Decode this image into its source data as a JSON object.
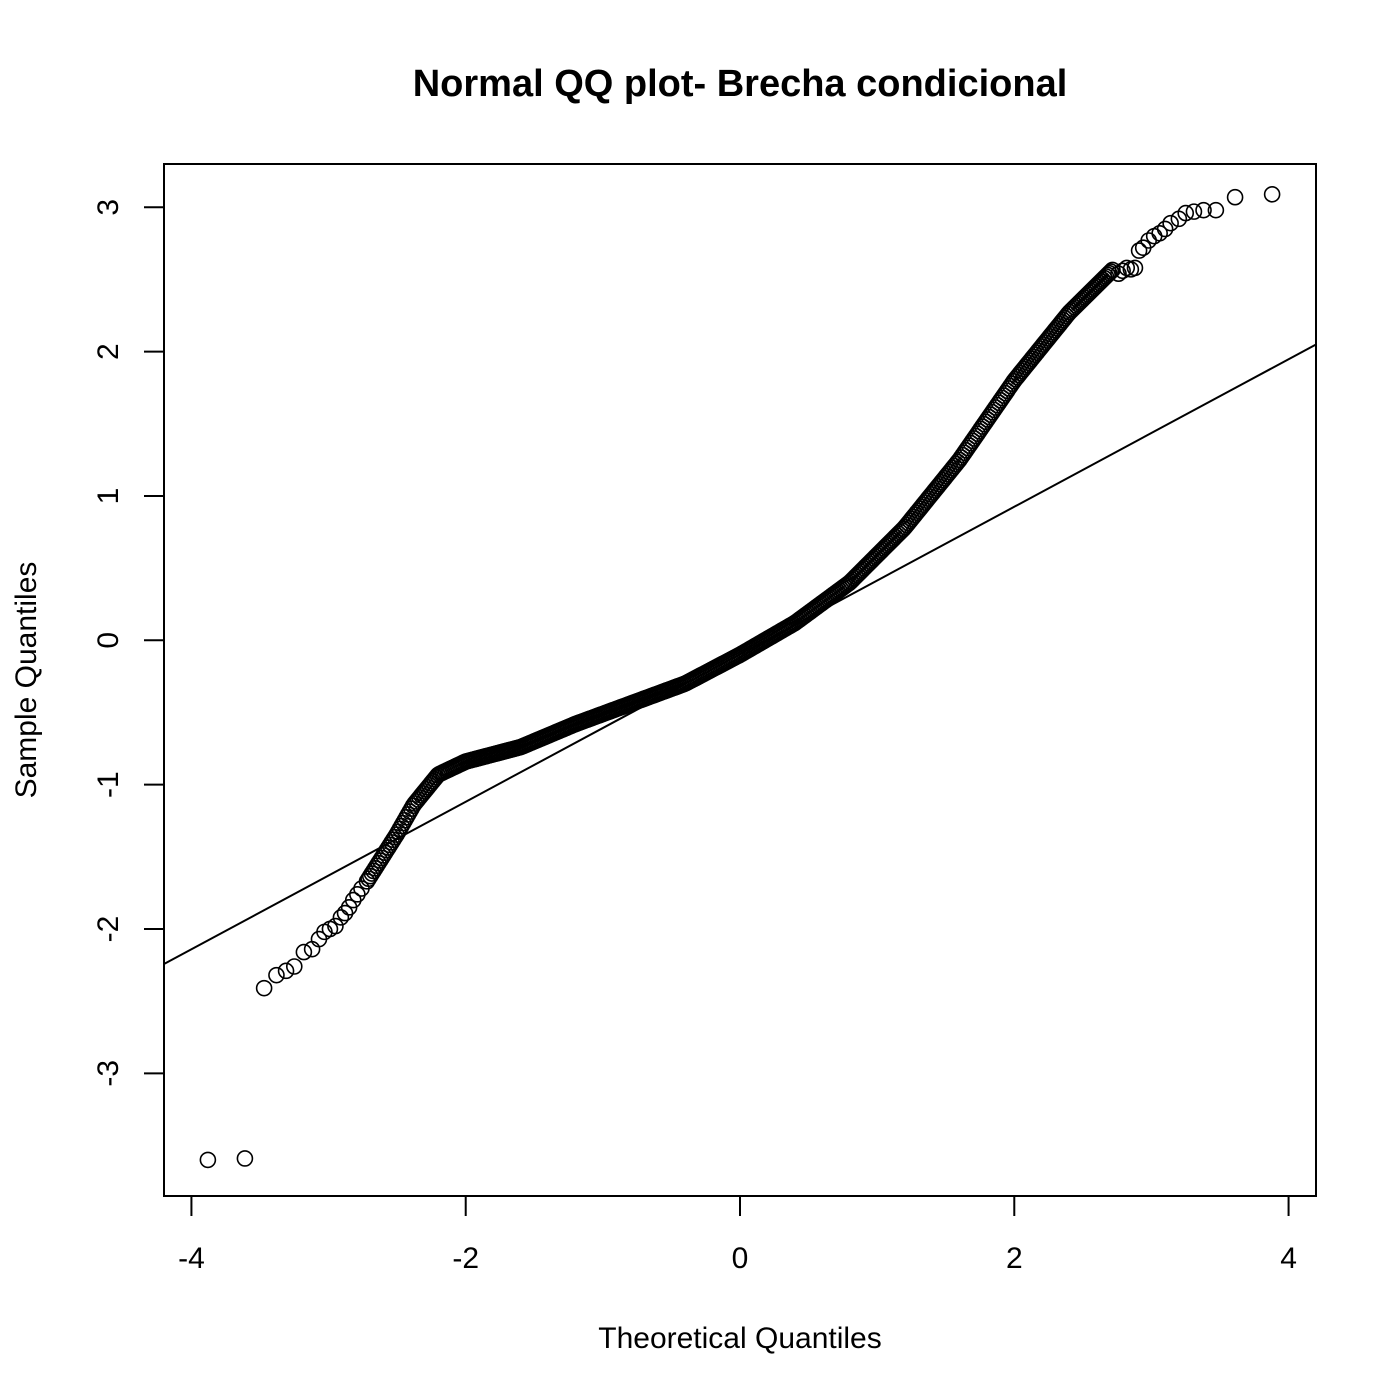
{
  "chart_data": {
    "type": "scatter",
    "title": "Normal QQ plot- Brecha condicional",
    "xlabel": "Theoretical Quantiles",
    "ylabel": "Sample Quantiles",
    "xlim": [
      -4.2,
      4.2
    ],
    "ylim": [
      -3.85,
      3.3
    ],
    "xticks": [
      "-4",
      "-2",
      "0",
      "2",
      "4"
    ],
    "yticks": [
      "-3",
      "-2",
      "-1",
      "0",
      "1",
      "2",
      "3"
    ],
    "grid": false,
    "legend": "none",
    "point_color": "#000000",
    "reference_line": {
      "slope": 0.511,
      "intercept": -0.0967
    },
    "curve_knots": [
      [
        -2.72,
        -1.67
      ],
      [
        -2.5,
        -1.34
      ],
      [
        -2.38,
        -1.14
      ],
      [
        -2.2,
        -0.93
      ],
      [
        -2.0,
        -0.84
      ],
      [
        -1.6,
        -0.74
      ],
      [
        -1.2,
        -0.58
      ],
      [
        -0.8,
        -0.44
      ],
      [
        -0.4,
        -0.3
      ],
      [
        0.0,
        -0.1
      ],
      [
        0.4,
        0.12
      ],
      [
        0.8,
        0.4
      ],
      [
        1.2,
        0.78
      ],
      [
        1.6,
        1.25
      ],
      [
        2.0,
        1.8
      ],
      [
        2.4,
        2.27
      ],
      [
        2.72,
        2.57
      ]
    ],
    "tail_points": [
      [
        -3.88,
        -3.6
      ],
      [
        -3.61,
        -3.59
      ],
      [
        -3.47,
        -2.41
      ],
      [
        -3.38,
        -2.32
      ],
      [
        -3.31,
        -2.29
      ],
      [
        -3.25,
        -2.26
      ],
      [
        -3.18,
        -2.16
      ],
      [
        -3.12,
        -2.14
      ],
      [
        -3.07,
        -2.07
      ],
      [
        -3.03,
        -2.02
      ],
      [
        -2.99,
        -2.0
      ],
      [
        -2.95,
        -1.98
      ],
      [
        -2.91,
        -1.92
      ],
      [
        -2.88,
        -1.89
      ],
      [
        -2.85,
        -1.85
      ],
      [
        -2.82,
        -1.8
      ],
      [
        -2.79,
        -1.76
      ],
      [
        -2.76,
        -1.72
      ],
      [
        2.76,
        2.54
      ],
      [
        2.79,
        2.56
      ],
      [
        2.82,
        2.58
      ],
      [
        2.85,
        2.57
      ],
      [
        2.88,
        2.58
      ],
      [
        2.91,
        2.7
      ],
      [
        2.94,
        2.72
      ],
      [
        2.98,
        2.77
      ],
      [
        3.02,
        2.8
      ],
      [
        3.06,
        2.82
      ],
      [
        3.1,
        2.85
      ],
      [
        3.14,
        2.89
      ],
      [
        3.2,
        2.92
      ],
      [
        3.25,
        2.96
      ],
      [
        3.31,
        2.97
      ],
      [
        3.38,
        2.98
      ],
      [
        3.47,
        2.98
      ],
      [
        3.61,
        3.07
      ],
      [
        3.88,
        3.09
      ]
    ]
  }
}
